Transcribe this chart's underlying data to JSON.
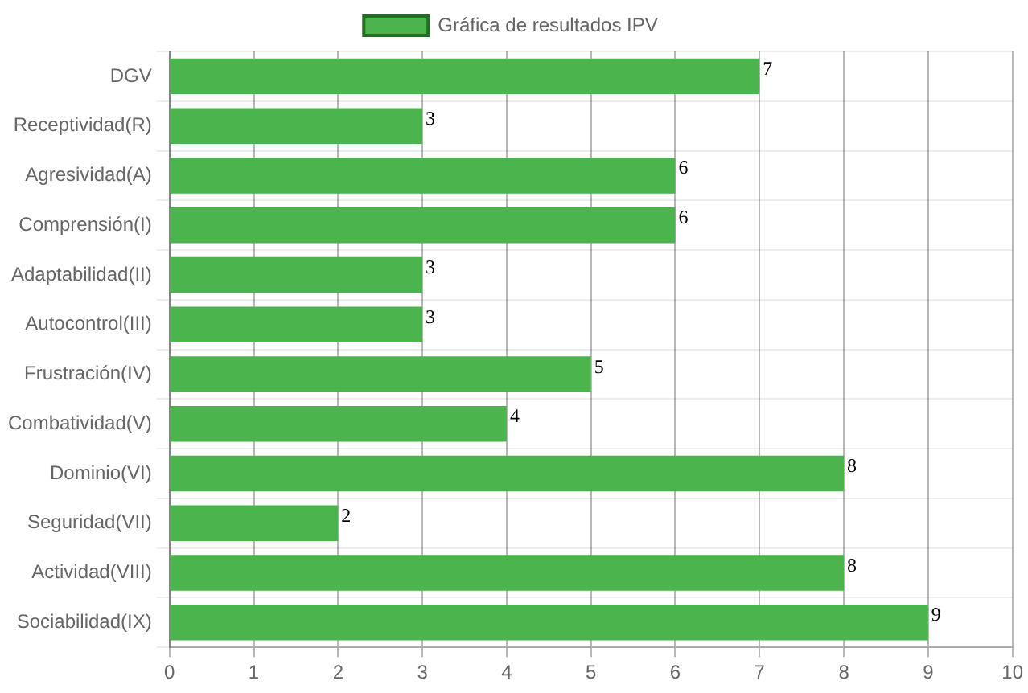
{
  "chart_data": {
    "type": "bar",
    "orientation": "horizontal",
    "categories": [
      "DGV",
      "Receptividad(R)",
      "Agresividad(A)",
      "Comprensión(I)",
      "Adaptabilidad(II)",
      "Autocontrol(III)",
      "Frustración(IV)",
      "Combatividad(V)",
      "Dominio(VI)",
      "Seguridad(VII)",
      "Actividad(VIII)",
      "Sociabilidad(IX)"
    ],
    "series": [
      {
        "name": "Gráfica de resultados IPV",
        "color": "#4cb44c",
        "values": [
          7,
          3,
          6,
          6,
          3,
          3,
          5,
          4,
          8,
          2,
          8,
          9
        ]
      }
    ],
    "xlim": [
      0,
      10
    ],
    "xticks": [
      0,
      1,
      2,
      3,
      4,
      5,
      6,
      7,
      8,
      9,
      10
    ],
    "grid": true,
    "legend": "top",
    "data_labels": true
  }
}
